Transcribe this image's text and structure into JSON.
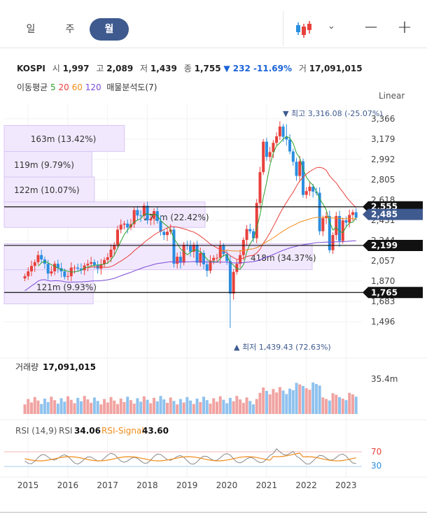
{
  "period_tabs": [
    "일",
    "주",
    "월"
  ],
  "active_tab": 2,
  "toolbar": {
    "chart_type_icon": "candlestick-icon",
    "dropdown_icon": "chevron-down-icon",
    "zoom_out": "−",
    "zoom_in": "+"
  },
  "stock": {
    "name": "KOSPI",
    "open_label": "시",
    "open": "1,997",
    "high_label": "고",
    "high": "2,089",
    "low_label": "저",
    "low": "1,439",
    "close_label": "종",
    "close": "1,755",
    "change": "▼ 232 -11.69%",
    "volume_label": "거",
    "volume": "17,091,015"
  },
  "moving_avg": {
    "label": "이동평균",
    "p5": "5",
    "p20": "20",
    "p60": "60",
    "p120": "120",
    "volume_profile": "매물분석도(7)"
  },
  "scale_mode": "Linear",
  "colors": {
    "up": "#e8413c",
    "down": "#2a8ee0",
    "ma5": "#2ba12b",
    "ma20": "#e8413c",
    "ma60": "#f08c1a",
    "ma120": "#7b4cd8",
    "profile": "#d9c5f5",
    "rsi": "#888888",
    "rsi_signal": "#f08c1a",
    "accent": "#3e5a8f"
  },
  "chart_data": {
    "type": "candlestick",
    "x_ticks": [
      "2015",
      "2016",
      "2017",
      "2018",
      "2019",
      "2020",
      "2021",
      "2022",
      "2023"
    ],
    "x_range": [
      2014.4,
      2023.4
    ],
    "y_ticks": [
      "3,366",
      "3,179",
      "2,992",
      "2,805",
      "2,618",
      "2,431",
      "2,244",
      "2,057",
      "1,870",
      "1,683",
      "1,496"
    ],
    "y_range": [
      1380,
      3430
    ],
    "high_marker": "▼ 최고 3,316.08 (-25.07%)",
    "low_marker": "▲ 최저 1,439.43 (72.63%)",
    "price_lines": [
      {
        "label": "2,555",
        "value": 2555,
        "style": "black"
      },
      {
        "label": "2,485",
        "value": 2485,
        "style": "accent"
      },
      {
        "label": "2,199",
        "value": 2199,
        "style": "black"
      },
      {
        "label": "1,765",
        "value": 1765,
        "style": "black"
      }
    ],
    "volume_profile": [
      {
        "label": "163m (13.42%)",
        "low": 3065,
        "high": 3305,
        "pct": 13.42
      },
      {
        "label": "119m (9.79%)",
        "low": 2830,
        "high": 3065,
        "pct": 9.79
      },
      {
        "label": "122m (10.07%)",
        "low": 2600,
        "high": 2830,
        "pct": 10.07
      },
      {
        "label": "273m (22.42%)",
        "low": 2365,
        "high": 2600,
        "pct": 22.42
      },
      {
        "label": "418m (34.37%)",
        "low": 1975,
        "high": 2215,
        "pct": 34.37
      },
      {
        "label": "121m (9.93%)",
        "low": 1660,
        "high": 1975,
        "pct": 9.93
      }
    ],
    "monthly_close": [
      1915,
      1960,
      2010,
      2045,
      2110,
      2070,
      2030,
      1940,
      1960,
      2030,
      1990,
      1960,
      1910,
      1915,
      1995,
      1995,
      1985,
      1970,
      2015,
      2030,
      2045,
      2020,
      1985,
      2025,
      2065,
      2090,
      2160,
      2205,
      2345,
      2390,
      2400,
      2365,
      2395,
      2525,
      2475,
      2470,
      2565,
      2430,
      2445,
      2515,
      2425,
      2325,
      2295,
      2325,
      2345,
      2030,
      2095,
      2040,
      2205,
      2195,
      2140,
      2205,
      2040,
      2130,
      2025,
      1965,
      2060,
      2085,
      2085,
      2195,
      2120,
      2055,
      1755,
      1955,
      2030,
      2110,
      2250,
      2350,
      2330,
      2265,
      2590,
      2875,
      3155,
      3015,
      3060,
      3145,
      3205,
      3295,
      3200,
      3175,
      3065,
      2970,
      2840,
      2975,
      2665,
      2700,
      2740,
      2695,
      2685,
      2330,
      2450,
      2470,
      2155,
      2295,
      2470,
      2240,
      2430,
      2410,
      2480,
      2505,
      2455
    ],
    "volume_title": "거래량",
    "volume_value": "17,091,015",
    "volume_axis": "35.4m",
    "rsi_label": "RSI (14,9)",
    "rsi_name": "RSI",
    "rsi_value": "34.06",
    "rsi_signal_name": "RSI-Signal",
    "rsi_signal_value": "43.60",
    "rsi_levels": [
      "70",
      "30"
    ]
  }
}
